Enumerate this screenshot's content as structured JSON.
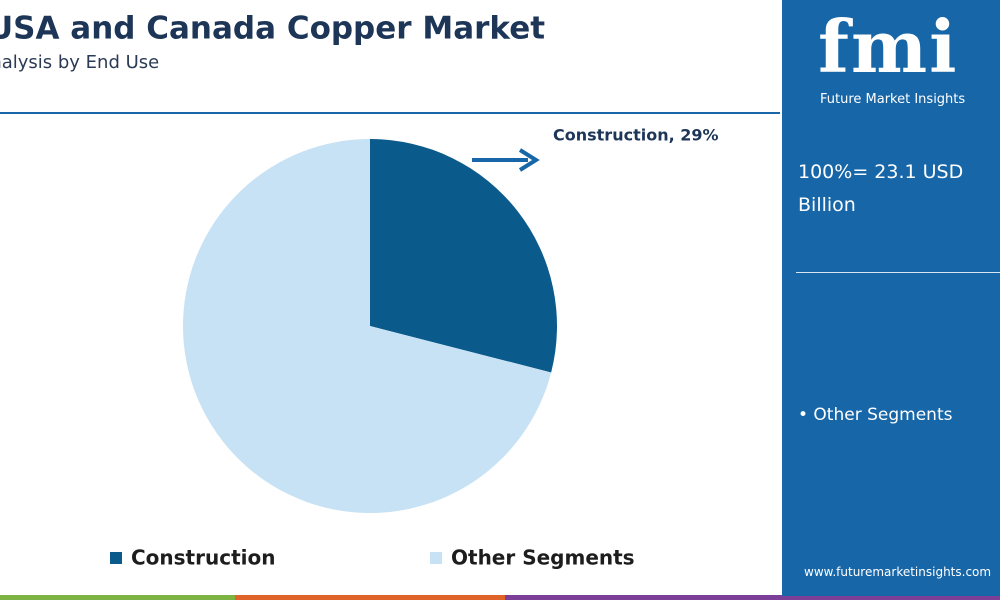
{
  "chart_data": {
    "type": "pie",
    "title": "USA and Canada Copper Market",
    "subtitle": "Analysis by End Use",
    "categories": [
      "Construction",
      "Other Segments"
    ],
    "values": [
      29,
      71
    ],
    "value_labels": [
      "Construction, 29%",
      null
    ],
    "colors": [
      "#0b5a8c",
      "#c6e2f4"
    ]
  },
  "side_panel": {
    "logo": "fmi",
    "brand": "Future Market Insights",
    "total": "100%= 23.1 USD Billion",
    "note": "• Other Segments",
    "url": "www.futuremarketinsights.com"
  }
}
